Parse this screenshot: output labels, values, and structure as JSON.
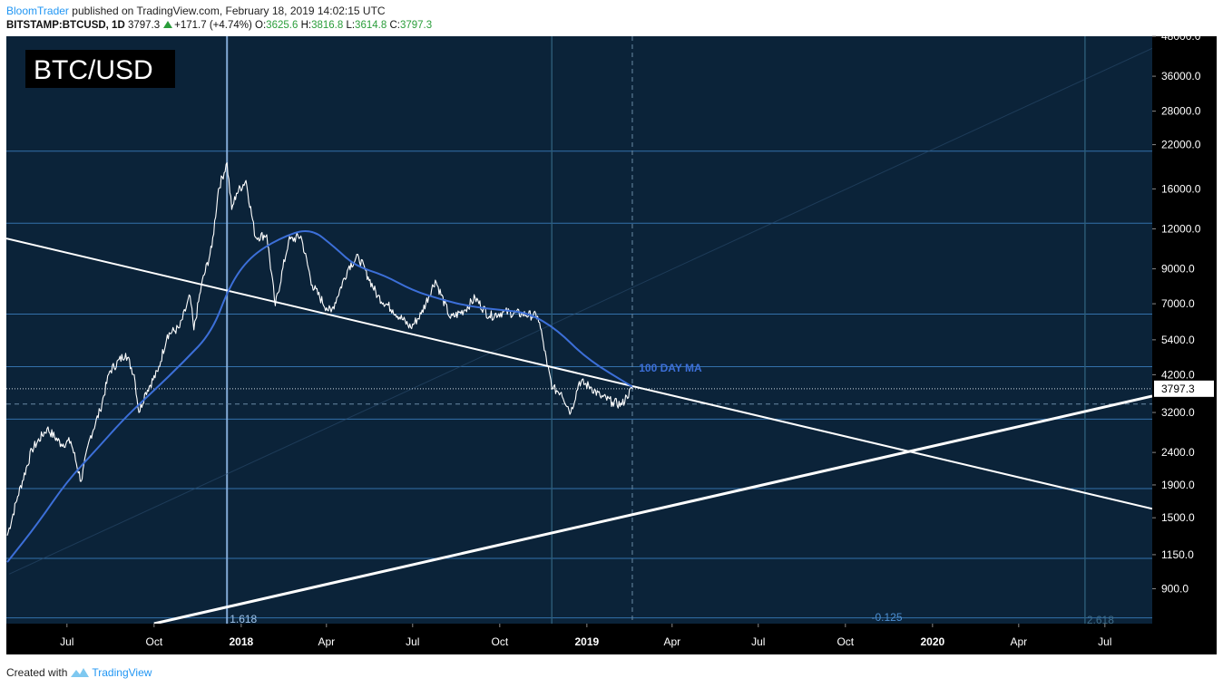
{
  "header": {
    "author": "BloomTrader",
    "published_text": "published on TradingView.com, February 18, 2019 14:02:15 UTC",
    "symbol": "BITSTAMP:BTCUSD, 1D",
    "last": "3797.3",
    "change": "+171.7 (+4.74%)",
    "open_label": "O:",
    "open": "3625.6",
    "high_label": "H:",
    "high": "3816.8",
    "low_label": "L:",
    "low": "3614.8",
    "close_label": "C:",
    "close": "3797.3"
  },
  "footer": {
    "created_with": "Created with",
    "brand": "TradingView"
  },
  "colors": {
    "background": "#0b2339",
    "ma": "#3c6fd8",
    "price": "#ffffff",
    "fib": "#3a7fbf",
    "axis_bg": "#000000"
  },
  "chart_data": {
    "type": "line",
    "title": "BTC/USD",
    "y_scale": "log",
    "ylim": [
      700,
      48000
    ],
    "x_range": [
      "2017-04-28",
      "2020-08-20"
    ],
    "y_ticks": [
      48000,
      36000,
      28000,
      22000,
      16000,
      12000,
      9000,
      7000,
      5400,
      4200,
      3200,
      2400,
      1900,
      1500,
      1150,
      900
    ],
    "y_tick_labels": [
      "48000.0",
      "36000.0",
      "28000.0",
      "22000.0",
      "16000.0",
      "12000.0",
      "9000.0",
      "7000.0",
      "5400.0",
      "4200.0",
      "3200.0",
      "2400.0",
      "1900.0",
      "1500.0",
      "1150.0",
      "900.0"
    ],
    "x_ticks": [
      {
        "date": "2017-07-01",
        "label": "Jul",
        "major": false
      },
      {
        "date": "2017-10-01",
        "label": "Oct",
        "major": false
      },
      {
        "date": "2018-01-01",
        "label": "2018",
        "major": true
      },
      {
        "date": "2018-04-01",
        "label": "Apr",
        "major": false
      },
      {
        "date": "2018-07-01",
        "label": "Jul",
        "major": false
      },
      {
        "date": "2018-10-01",
        "label": "Oct",
        "major": false
      },
      {
        "date": "2019-01-01",
        "label": "2019",
        "major": true
      },
      {
        "date": "2019-04-01",
        "label": "Apr",
        "major": false
      },
      {
        "date": "2019-07-01",
        "label": "Jul",
        "major": false
      },
      {
        "date": "2019-10-01",
        "label": "Oct",
        "major": false
      },
      {
        "date": "2020-01-01",
        "label": "2020",
        "major": true
      },
      {
        "date": "2020-04-01",
        "label": "Apr",
        "major": false
      },
      {
        "date": "2020-07-01",
        "label": "Jul",
        "major": false
      }
    ],
    "last_price": 3797.3,
    "last_price_label": "3797.3",
    "series": [
      {
        "name": "BTCUSD",
        "points": [
          [
            "2017-04-29",
            1320
          ],
          [
            "2017-05-10",
            1750
          ],
          [
            "2017-05-25",
            2450
          ],
          [
            "2017-06-10",
            2850
          ],
          [
            "2017-06-25",
            2550
          ],
          [
            "2017-07-05",
            2600
          ],
          [
            "2017-07-16",
            1950
          ],
          [
            "2017-07-25",
            2650
          ],
          [
            "2017-08-05",
            3250
          ],
          [
            "2017-08-15",
            4300
          ],
          [
            "2017-09-01",
            4900
          ],
          [
            "2017-09-10",
            4200
          ],
          [
            "2017-09-15",
            3200
          ],
          [
            "2017-09-22",
            3700
          ],
          [
            "2017-10-05",
            4300
          ],
          [
            "2017-10-15",
            5600
          ],
          [
            "2017-10-28",
            5900
          ],
          [
            "2017-11-08",
            7400
          ],
          [
            "2017-11-12",
            5800
          ],
          [
            "2017-11-20",
            8000
          ],
          [
            "2017-12-01",
            10500
          ],
          [
            "2017-12-08",
            16000
          ],
          [
            "2017-12-17",
            19300
          ],
          [
            "2017-12-22",
            13800
          ],
          [
            "2017-12-27",
            15500
          ],
          [
            "2018-01-06",
            17000
          ],
          [
            "2018-01-16",
            11300
          ],
          [
            "2018-01-28",
            11500
          ],
          [
            "2018-02-06",
            6900
          ],
          [
            "2018-02-20",
            11000
          ],
          [
            "2018-03-05",
            11400
          ],
          [
            "2018-03-17",
            8000
          ],
          [
            "2018-04-01",
            6800
          ],
          [
            "2018-04-06",
            6600
          ],
          [
            "2018-04-25",
            9200
          ],
          [
            "2018-05-05",
            9800
          ],
          [
            "2018-05-15",
            8500
          ],
          [
            "2018-05-25",
            7400
          ],
          [
            "2018-06-10",
            6700
          ],
          [
            "2018-06-29",
            5900
          ],
          [
            "2018-07-10",
            6500
          ],
          [
            "2018-07-25",
            8300
          ],
          [
            "2018-08-10",
            6300
          ],
          [
            "2018-08-25",
            6700
          ],
          [
            "2018-09-05",
            7300
          ],
          [
            "2018-09-20",
            6400
          ],
          [
            "2018-10-05",
            6600
          ],
          [
            "2018-10-25",
            6500
          ],
          [
            "2018-11-10",
            6400
          ],
          [
            "2018-11-15",
            5500
          ],
          [
            "2018-11-20",
            4500
          ],
          [
            "2018-11-26",
            3800
          ],
          [
            "2018-12-05",
            3700
          ],
          [
            "2018-12-15",
            3200
          ],
          [
            "2018-12-24",
            4000
          ],
          [
            "2019-01-05",
            3850
          ],
          [
            "2019-01-15",
            3600
          ],
          [
            "2019-01-28",
            3450
          ],
          [
            "2019-02-07",
            3380
          ],
          [
            "2019-02-12",
            3600
          ],
          [
            "2019-02-18",
            3797
          ]
        ]
      },
      {
        "name": "100 DAY MA",
        "points": [
          [
            "2017-04-29",
            1090
          ],
          [
            "2017-06-01",
            1450
          ],
          [
            "2017-07-01",
            1950
          ],
          [
            "2017-08-01",
            2450
          ],
          [
            "2017-09-01",
            3100
          ],
          [
            "2017-10-01",
            3750
          ],
          [
            "2017-11-01",
            4600
          ],
          [
            "2017-12-01",
            5700
          ],
          [
            "2017-12-20",
            8000
          ],
          [
            "2018-01-10",
            9800
          ],
          [
            "2018-02-10",
            11200
          ],
          [
            "2018-03-15",
            12100
          ],
          [
            "2018-04-10",
            10500
          ],
          [
            "2018-05-01",
            9200
          ],
          [
            "2018-06-01",
            8600
          ],
          [
            "2018-07-01",
            7700
          ],
          [
            "2018-08-01",
            7200
          ],
          [
            "2018-09-01",
            6850
          ],
          [
            "2018-10-01",
            6700
          ],
          [
            "2018-11-01",
            6550
          ],
          [
            "2018-12-01",
            5800
          ],
          [
            "2019-01-01",
            4700
          ],
          [
            "2019-02-18",
            3850
          ]
        ]
      }
    ],
    "fib_lines": [
      {
        "price": 21000
      },
      {
        "price": 12500
      },
      {
        "price": 6500
      },
      {
        "price": 4450
      },
      {
        "price": 3050
      },
      {
        "price": 1850
      },
      {
        "price": 1120
      },
      {
        "price": 730
      }
    ],
    "fib_vertical_dates": [
      "2017-12-17",
      "2018-11-25",
      "2020-06-10"
    ],
    "fib_labels": [
      "1.618",
      "-0.125",
      "2.618"
    ],
    "dashed_vertical_date": "2019-02-18",
    "dashed_horizontal_price": 3400,
    "trendlines": [
      {
        "name": "descending",
        "from": [
          "2017-04-28",
          11200
        ],
        "to": [
          "2020-08-20",
          1600
        ],
        "width": 2
      },
      {
        "name": "ascending",
        "from": [
          "2017-10-01",
          700
        ],
        "to": [
          "2020-08-20",
          3600
        ],
        "width": 3
      }
    ],
    "annotations": [
      {
        "text": "100 DAY MA",
        "date": "2019-02-25",
        "price": 4400
      }
    ]
  }
}
